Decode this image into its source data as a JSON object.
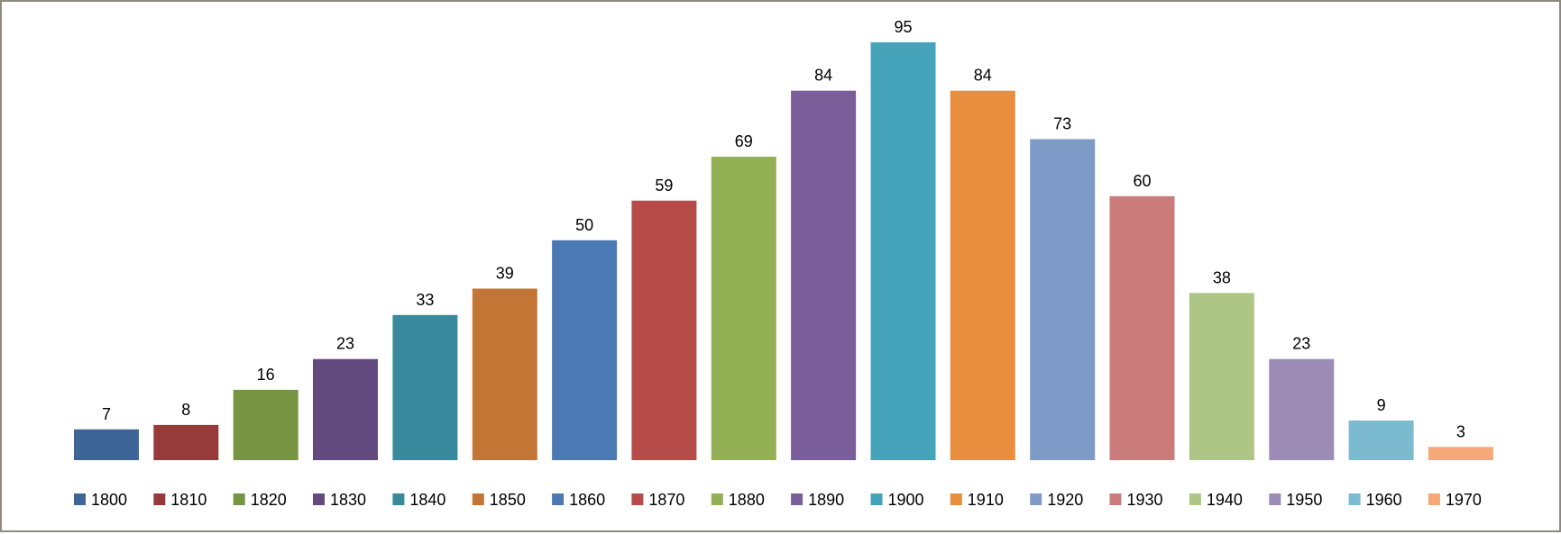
{
  "chart_data": {
    "type": "bar",
    "title": "",
    "xlabel": "",
    "ylabel": "",
    "ylim": [
      0,
      95
    ],
    "grid": false,
    "legend_position": "bottom",
    "categories": [
      "1800",
      "1810",
      "1820",
      "1830",
      "1840",
      "1850",
      "1860",
      "1870",
      "1880",
      "1890",
      "1900",
      "1910",
      "1920",
      "1930",
      "1940",
      "1950",
      "1960",
      "1970"
    ],
    "values": [
      7,
      8,
      16,
      23,
      33,
      39,
      50,
      59,
      69,
      84,
      95,
      84,
      73,
      60,
      38,
      23,
      9,
      3
    ],
    "colors": [
      "#3e6598",
      "#963b3a",
      "#779442",
      "#624a7e",
      "#37899b",
      "#c37535",
      "#4a79b3",
      "#b64c4a",
      "#93b055",
      "#7a5e99",
      "#45a3ba",
      "#e98d3f",
      "#7e9bc8",
      "#ca7c7b",
      "#adc685",
      "#9b8bb5",
      "#7cbacf",
      "#f5a878"
    ]
  }
}
